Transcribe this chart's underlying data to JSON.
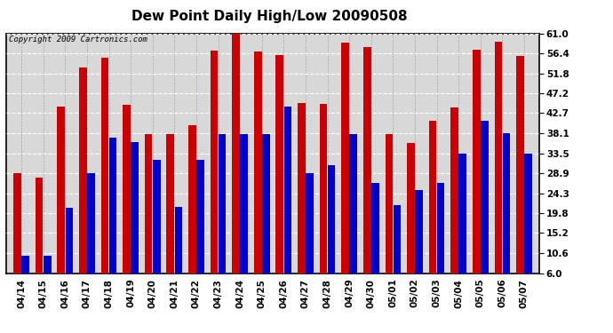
{
  "title": "Dew Point Daily High/Low 20090508",
  "copyright": "Copyright 2009 Cartronics.com",
  "background_color": "#ffffff",
  "plot_bg_color": "#d8d8d8",
  "bar_high_color": "#cc0000",
  "bar_low_color": "#0000cc",
  "ylim": [
    6.0,
    61.0
  ],
  "yticks": [
    6.0,
    10.6,
    15.2,
    19.8,
    24.3,
    28.9,
    33.5,
    38.1,
    42.7,
    47.2,
    51.8,
    56.4,
    61.0
  ],
  "dates": [
    "04/14",
    "04/15",
    "04/16",
    "04/17",
    "04/18",
    "04/19",
    "04/20",
    "04/21",
    "04/22",
    "04/23",
    "04/24",
    "04/25",
    "04/26",
    "04/27",
    "04/28",
    "04/29",
    "04/30",
    "05/01",
    "05/02",
    "05/03",
    "05/04",
    "05/05",
    "05/06",
    "05/07"
  ],
  "highs": [
    28.9,
    27.9,
    44.2,
    53.2,
    55.4,
    44.6,
    37.9,
    37.9,
    39.9,
    57.0,
    61.0,
    56.9,
    56.0,
    45.0,
    44.9,
    58.9,
    57.9,
    37.9,
    35.8,
    40.9,
    43.9,
    57.2,
    59.0,
    55.8
  ],
  "lows": [
    10.0,
    10.0,
    20.9,
    29.0,
    37.0,
    36.0,
    31.9,
    21.2,
    32.0,
    37.9,
    37.9,
    37.9,
    44.2,
    29.0,
    30.8,
    37.9,
    26.7,
    21.6,
    25.0,
    26.7,
    33.5,
    41.0,
    38.1,
    33.5
  ],
  "fig_width": 6.9,
  "fig_height": 3.75,
  "dpi": 100,
  "title_fontsize": 11,
  "tick_fontsize": 7.5,
  "copyright_fontsize": 6.5,
  "bar_width": 0.35,
  "bar_gap": 0.02
}
